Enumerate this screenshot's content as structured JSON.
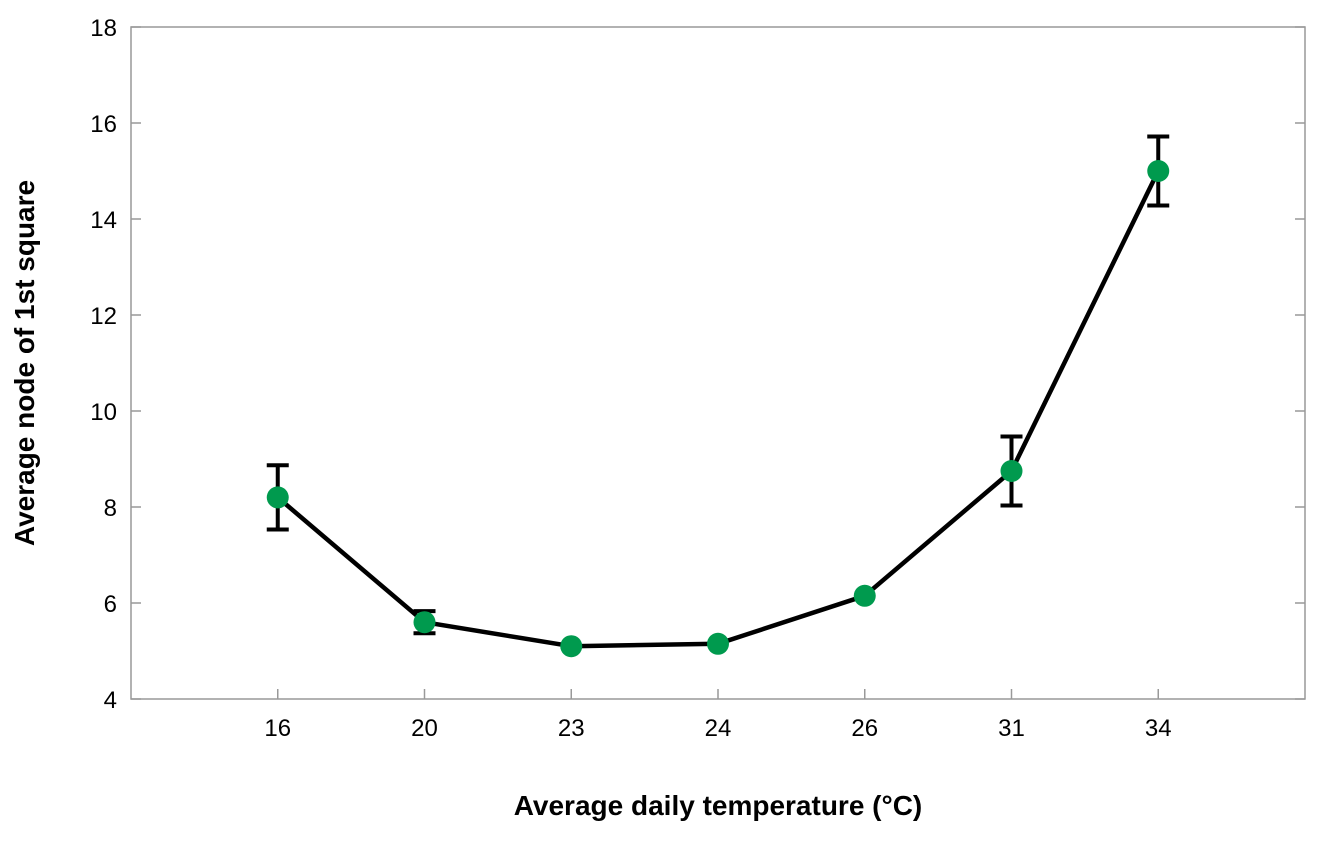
{
  "chart_data": {
    "type": "line",
    "title": "",
    "xlabel": "Average daily temperature (°C)",
    "ylabel": "Average node of 1st square",
    "categories": [
      "16",
      "20",
      "23",
      "24",
      "26",
      "31",
      "34"
    ],
    "series": [
      {
        "values": [
          8.2,
          5.6,
          5.1,
          5.15,
          6.15,
          8.75,
          15.0
        ],
        "error": [
          0.67,
          0.23,
          null,
          null,
          null,
          0.72,
          0.72
        ]
      }
    ],
    "ylim": [
      4,
      18
    ],
    "yticks": [
      "4",
      "6",
      "8",
      "10",
      "12",
      "14",
      "16",
      "18"
    ],
    "grid": false,
    "legend": "none",
    "colors": {
      "marker": "#009A4E",
      "line": "#000000",
      "frame": "#999999"
    }
  }
}
